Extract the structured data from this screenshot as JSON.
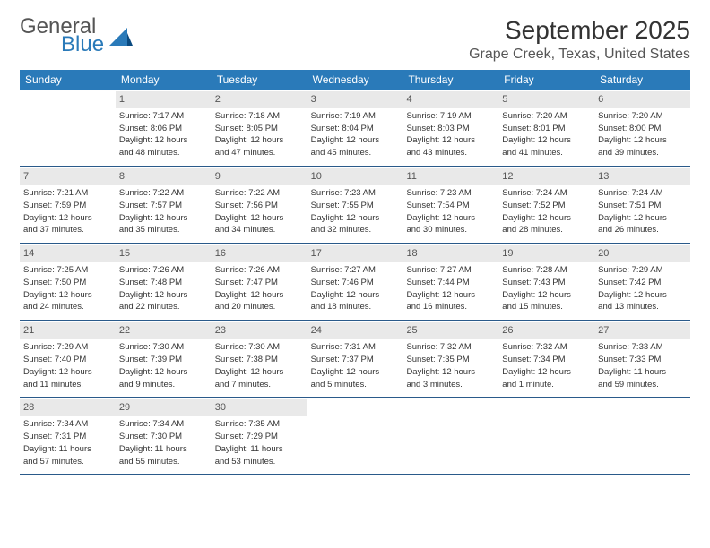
{
  "logo": {
    "text1": "General",
    "text2": "Blue"
  },
  "title": "September 2025",
  "location": "Grape Creek, Texas, United States",
  "colors": {
    "header_bg": "#2a7ab9",
    "header_text": "#ffffff",
    "daynum_bg": "#e9e9e9",
    "daynum_text": "#555555",
    "body_text": "#333333",
    "rule": "#2a5a8a"
  },
  "days_of_week": [
    "Sunday",
    "Monday",
    "Tuesday",
    "Wednesday",
    "Thursday",
    "Friday",
    "Saturday"
  ],
  "weeks": [
    [
      null,
      {
        "n": "1",
        "sunrise": "Sunrise: 7:17 AM",
        "sunset": "Sunset: 8:06 PM",
        "day1": "Daylight: 12 hours",
        "day2": "and 48 minutes."
      },
      {
        "n": "2",
        "sunrise": "Sunrise: 7:18 AM",
        "sunset": "Sunset: 8:05 PM",
        "day1": "Daylight: 12 hours",
        "day2": "and 47 minutes."
      },
      {
        "n": "3",
        "sunrise": "Sunrise: 7:19 AM",
        "sunset": "Sunset: 8:04 PM",
        "day1": "Daylight: 12 hours",
        "day2": "and 45 minutes."
      },
      {
        "n": "4",
        "sunrise": "Sunrise: 7:19 AM",
        "sunset": "Sunset: 8:03 PM",
        "day1": "Daylight: 12 hours",
        "day2": "and 43 minutes."
      },
      {
        "n": "5",
        "sunrise": "Sunrise: 7:20 AM",
        "sunset": "Sunset: 8:01 PM",
        "day1": "Daylight: 12 hours",
        "day2": "and 41 minutes."
      },
      {
        "n": "6",
        "sunrise": "Sunrise: 7:20 AM",
        "sunset": "Sunset: 8:00 PM",
        "day1": "Daylight: 12 hours",
        "day2": "and 39 minutes."
      }
    ],
    [
      {
        "n": "7",
        "sunrise": "Sunrise: 7:21 AM",
        "sunset": "Sunset: 7:59 PM",
        "day1": "Daylight: 12 hours",
        "day2": "and 37 minutes."
      },
      {
        "n": "8",
        "sunrise": "Sunrise: 7:22 AM",
        "sunset": "Sunset: 7:57 PM",
        "day1": "Daylight: 12 hours",
        "day2": "and 35 minutes."
      },
      {
        "n": "9",
        "sunrise": "Sunrise: 7:22 AM",
        "sunset": "Sunset: 7:56 PM",
        "day1": "Daylight: 12 hours",
        "day2": "and 34 minutes."
      },
      {
        "n": "10",
        "sunrise": "Sunrise: 7:23 AM",
        "sunset": "Sunset: 7:55 PM",
        "day1": "Daylight: 12 hours",
        "day2": "and 32 minutes."
      },
      {
        "n": "11",
        "sunrise": "Sunrise: 7:23 AM",
        "sunset": "Sunset: 7:54 PM",
        "day1": "Daylight: 12 hours",
        "day2": "and 30 minutes."
      },
      {
        "n": "12",
        "sunrise": "Sunrise: 7:24 AM",
        "sunset": "Sunset: 7:52 PM",
        "day1": "Daylight: 12 hours",
        "day2": "and 28 minutes."
      },
      {
        "n": "13",
        "sunrise": "Sunrise: 7:24 AM",
        "sunset": "Sunset: 7:51 PM",
        "day1": "Daylight: 12 hours",
        "day2": "and 26 minutes."
      }
    ],
    [
      {
        "n": "14",
        "sunrise": "Sunrise: 7:25 AM",
        "sunset": "Sunset: 7:50 PM",
        "day1": "Daylight: 12 hours",
        "day2": "and 24 minutes."
      },
      {
        "n": "15",
        "sunrise": "Sunrise: 7:26 AM",
        "sunset": "Sunset: 7:48 PM",
        "day1": "Daylight: 12 hours",
        "day2": "and 22 minutes."
      },
      {
        "n": "16",
        "sunrise": "Sunrise: 7:26 AM",
        "sunset": "Sunset: 7:47 PM",
        "day1": "Daylight: 12 hours",
        "day2": "and 20 minutes."
      },
      {
        "n": "17",
        "sunrise": "Sunrise: 7:27 AM",
        "sunset": "Sunset: 7:46 PM",
        "day1": "Daylight: 12 hours",
        "day2": "and 18 minutes."
      },
      {
        "n": "18",
        "sunrise": "Sunrise: 7:27 AM",
        "sunset": "Sunset: 7:44 PM",
        "day1": "Daylight: 12 hours",
        "day2": "and 16 minutes."
      },
      {
        "n": "19",
        "sunrise": "Sunrise: 7:28 AM",
        "sunset": "Sunset: 7:43 PM",
        "day1": "Daylight: 12 hours",
        "day2": "and 15 minutes."
      },
      {
        "n": "20",
        "sunrise": "Sunrise: 7:29 AM",
        "sunset": "Sunset: 7:42 PM",
        "day1": "Daylight: 12 hours",
        "day2": "and 13 minutes."
      }
    ],
    [
      {
        "n": "21",
        "sunrise": "Sunrise: 7:29 AM",
        "sunset": "Sunset: 7:40 PM",
        "day1": "Daylight: 12 hours",
        "day2": "and 11 minutes."
      },
      {
        "n": "22",
        "sunrise": "Sunrise: 7:30 AM",
        "sunset": "Sunset: 7:39 PM",
        "day1": "Daylight: 12 hours",
        "day2": "and 9 minutes."
      },
      {
        "n": "23",
        "sunrise": "Sunrise: 7:30 AM",
        "sunset": "Sunset: 7:38 PM",
        "day1": "Daylight: 12 hours",
        "day2": "and 7 minutes."
      },
      {
        "n": "24",
        "sunrise": "Sunrise: 7:31 AM",
        "sunset": "Sunset: 7:37 PM",
        "day1": "Daylight: 12 hours",
        "day2": "and 5 minutes."
      },
      {
        "n": "25",
        "sunrise": "Sunrise: 7:32 AM",
        "sunset": "Sunset: 7:35 PM",
        "day1": "Daylight: 12 hours",
        "day2": "and 3 minutes."
      },
      {
        "n": "26",
        "sunrise": "Sunrise: 7:32 AM",
        "sunset": "Sunset: 7:34 PM",
        "day1": "Daylight: 12 hours",
        "day2": "and 1 minute."
      },
      {
        "n": "27",
        "sunrise": "Sunrise: 7:33 AM",
        "sunset": "Sunset: 7:33 PM",
        "day1": "Daylight: 11 hours",
        "day2": "and 59 minutes."
      }
    ],
    [
      {
        "n": "28",
        "sunrise": "Sunrise: 7:34 AM",
        "sunset": "Sunset: 7:31 PM",
        "day1": "Daylight: 11 hours",
        "day2": "and 57 minutes."
      },
      {
        "n": "29",
        "sunrise": "Sunrise: 7:34 AM",
        "sunset": "Sunset: 7:30 PM",
        "day1": "Daylight: 11 hours",
        "day2": "and 55 minutes."
      },
      {
        "n": "30",
        "sunrise": "Sunrise: 7:35 AM",
        "sunset": "Sunset: 7:29 PM",
        "day1": "Daylight: 11 hours",
        "day2": "and 53 minutes."
      },
      null,
      null,
      null,
      null
    ]
  ]
}
